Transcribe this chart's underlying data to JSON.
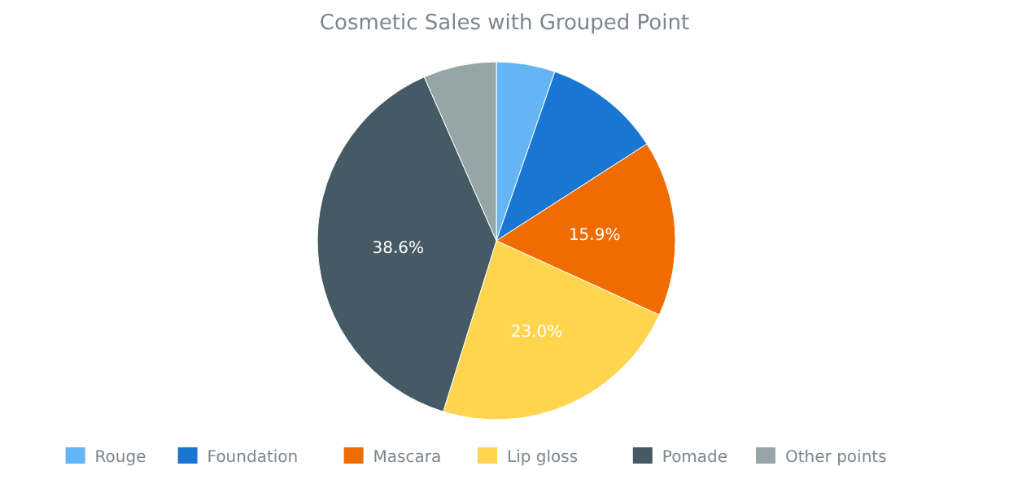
{
  "chart_data": {
    "type": "pie",
    "title": "Cosmetic Sales with Grouped Point",
    "categories": [
      "Rouge",
      "Foundation",
      "Mascara",
      "Lip gloss",
      "Pomade",
      "Other points"
    ],
    "values": [
      5.3,
      10.6,
      15.9,
      23.0,
      38.6,
      6.6
    ],
    "colors": [
      "#64b5f6",
      "#1976d2",
      "#ef6c00",
      "#ffd54f",
      "#455a64",
      "#96a6a6"
    ],
    "value_labels": [
      null,
      null,
      "15.9%",
      "23.0%",
      "38.6%",
      null
    ],
    "legend": "bottom"
  }
}
